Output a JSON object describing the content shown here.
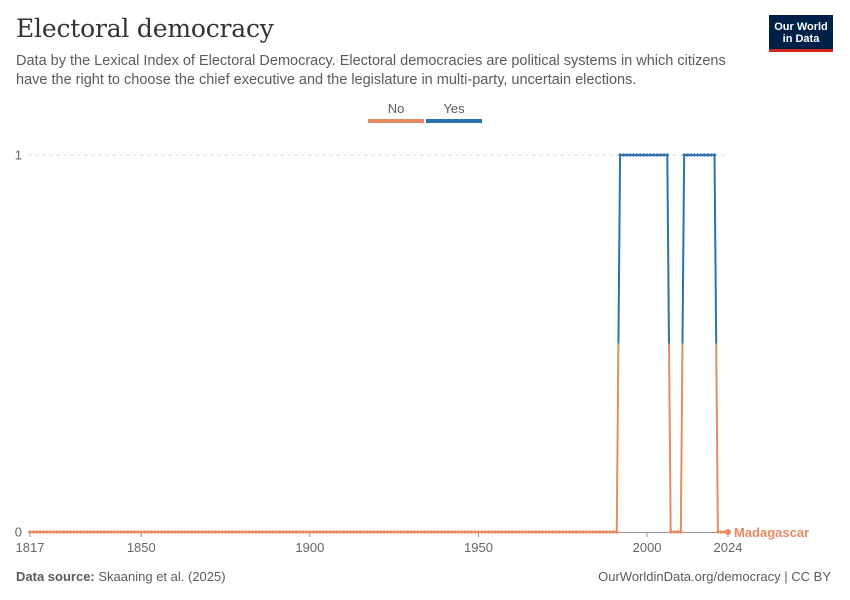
{
  "header": {
    "title": "Electoral democracy",
    "subtitle": "Data by the Lexical Index of Electoral Democracy. Electoral democracies are political systems in which citizens have the right to choose the chief executive and the legislature in multi-party, uncertain elections.",
    "logo_line1": "Our World",
    "logo_line2": "in Data"
  },
  "footer": {
    "source_label": "Data source:",
    "source_text": "Skaaning et al. (2025)",
    "url_license": "OurWorldinData.org/democracy | CC BY"
  },
  "colors": {
    "no": "#e68a62",
    "yes": "#2d72ad",
    "grid": "#dddddd",
    "axis": "#999999"
  },
  "chart_data": {
    "type": "line",
    "title": "Electoral democracy",
    "series": [
      {
        "name": "Madagascar",
        "x_range": [
          1817,
          2024
        ],
        "values_by_year": {
          "1817-1991": 0,
          "1992-2006": 1,
          "2007-2010": 0,
          "2011-2020": 1,
          "2021-2024": 0
        }
      }
    ],
    "segments": [
      {
        "from": 1817,
        "to": 1991,
        "value": 0
      },
      {
        "from": 1992,
        "to": 2006,
        "value": 1
      },
      {
        "from": 2007,
        "to": 2010,
        "value": 0
      },
      {
        "from": 2011,
        "to": 2020,
        "value": 1
      },
      {
        "from": 2021,
        "to": 2024,
        "value": 0
      }
    ],
    "legend": {
      "placement": "top-center",
      "items": [
        {
          "label": "No",
          "color": "#e68a62"
        },
        {
          "label": "Yes",
          "color": "#2d72ad"
        }
      ]
    },
    "xlim": [
      1817,
      2024
    ],
    "ylim": [
      0,
      1
    ],
    "x_ticks": [
      "1817",
      "1850",
      "1900",
      "1950",
      "2000",
      "2024"
    ],
    "x_tick_values": [
      1817,
      1850,
      1900,
      1950,
      2000,
      2024
    ],
    "y_ticks": [
      "0",
      "1"
    ],
    "y_tick_values": [
      0,
      1
    ],
    "end_label": "Madagascar",
    "grid": "horizontal-dashed"
  }
}
